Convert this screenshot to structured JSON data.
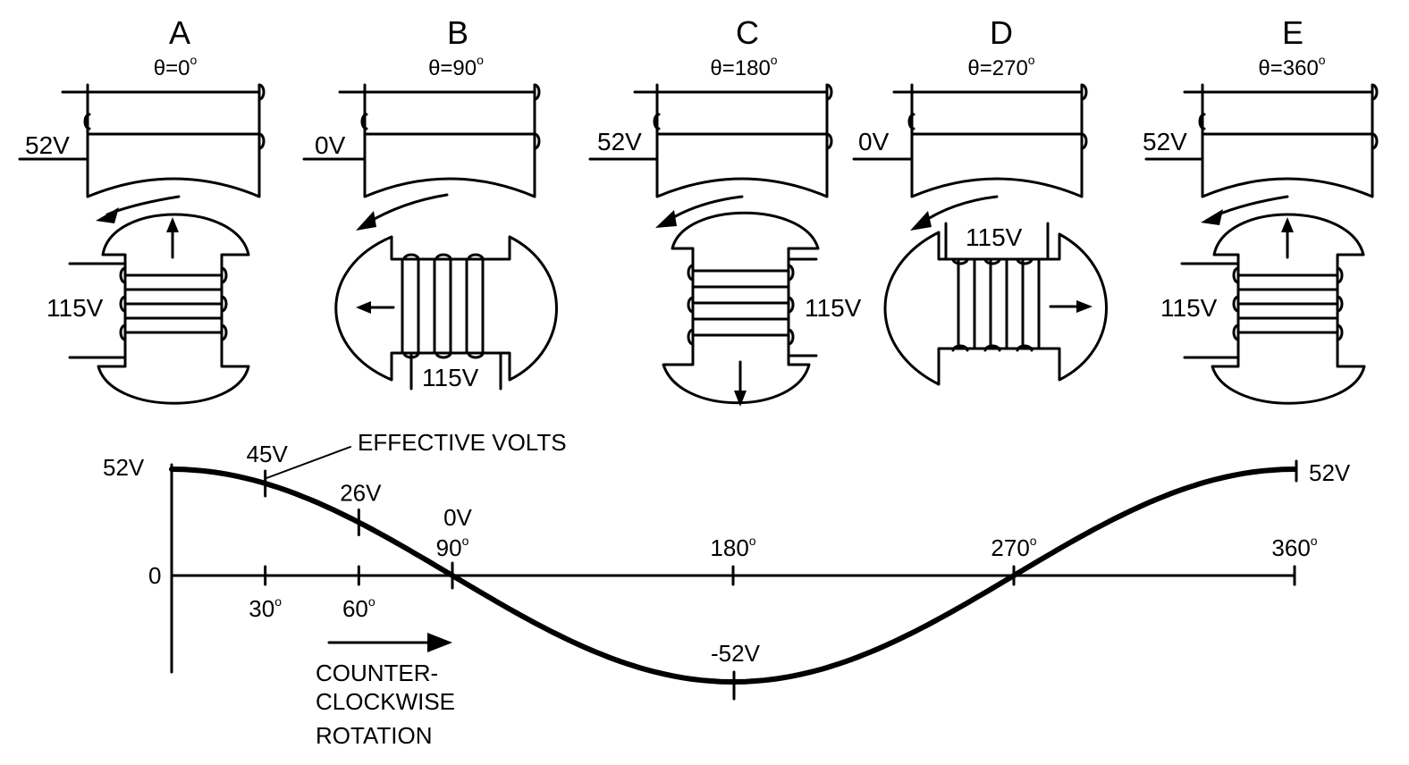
{
  "panels": [
    {
      "letter": "A",
      "angle": "θ=0",
      "deg": "o",
      "stator_voltage": "52V",
      "rotor_voltage": "115V",
      "rotor_angle": 0
    },
    {
      "letter": "B",
      "angle": "θ=90",
      "deg": "o",
      "stator_voltage": "0V",
      "rotor_voltage": "115V",
      "rotor_angle": 90
    },
    {
      "letter": "C",
      "angle": "θ=180",
      "deg": "o",
      "stator_voltage": "52V",
      "rotor_voltage": "115V",
      "rotor_angle": 180
    },
    {
      "letter": "D",
      "angle": "θ=270",
      "deg": "o",
      "stator_voltage": "0V",
      "rotor_voltage": "115V",
      "rotor_angle": 270
    },
    {
      "letter": "E",
      "angle": "θ=360",
      "deg": "o",
      "stator_voltage": "52V",
      "rotor_voltage": "115V",
      "rotor_angle": 360
    }
  ],
  "graph": {
    "y_labels": {
      "peak_left": "52V",
      "peak_right": "52V",
      "zero": "0",
      "trough": "-52V"
    },
    "x_ticks": [
      {
        "value": 30,
        "label": "30"
      },
      {
        "value": 60,
        "label": "60"
      },
      {
        "value": 90,
        "label": "90"
      },
      {
        "value": 180,
        "label": "180"
      },
      {
        "value": 270,
        "label": "270"
      },
      {
        "value": 360,
        "label": "360"
      }
    ],
    "degree_mark": "o",
    "point_labels": [
      {
        "angle": 30,
        "label": "45V"
      },
      {
        "angle": 60,
        "label": "26V"
      },
      {
        "angle": 90,
        "label": "0V"
      }
    ],
    "effective_volts_label": "EFFECTIVE VOLTS",
    "rotation_label": [
      "COUNTER-",
      "CLOCKWISE",
      "ROTATION"
    ],
    "amplitude": 52,
    "x_range": [
      0,
      360
    ]
  }
}
